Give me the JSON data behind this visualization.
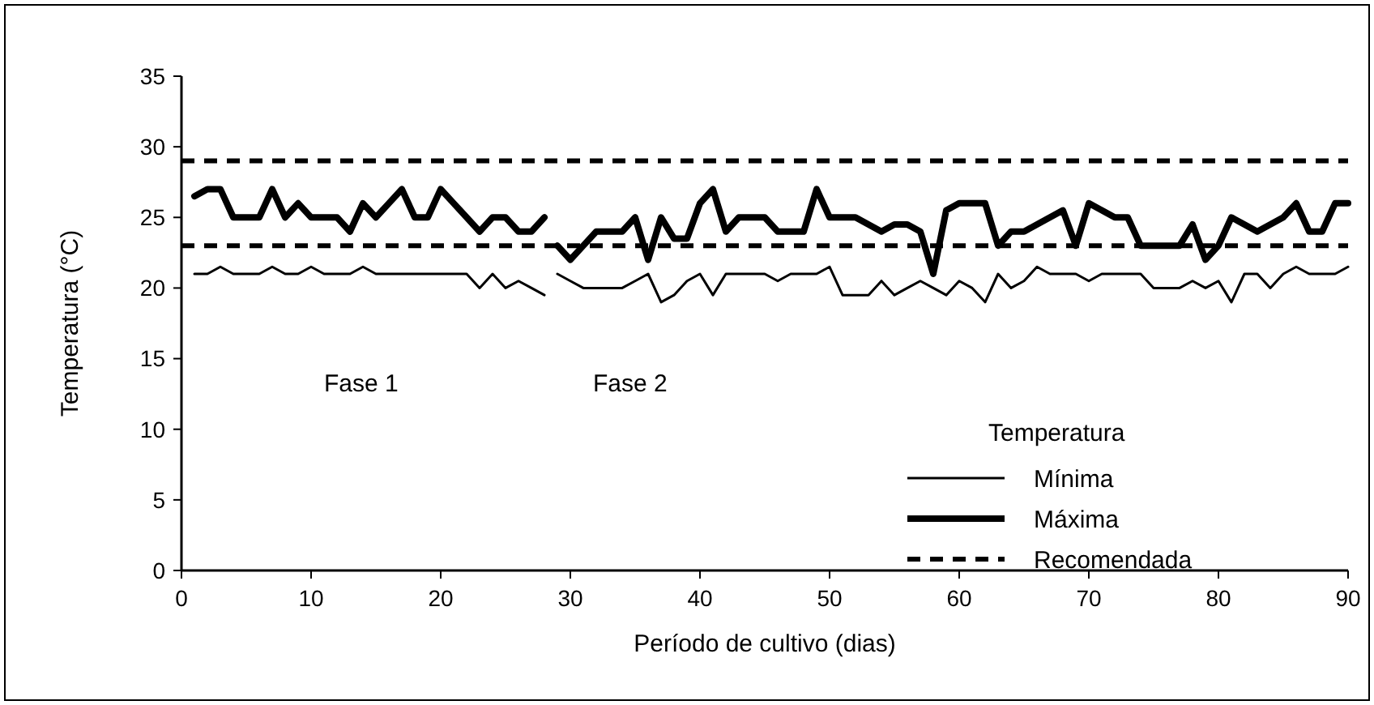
{
  "chart_data": {
    "type": "line",
    "xlabel": "Período de cultivo (dias)",
    "ylabel": "Temperatura (°C)",
    "legend_title": "Temperatura",
    "x": [
      1,
      2,
      3,
      4,
      5,
      6,
      7,
      8,
      9,
      10,
      11,
      12,
      13,
      14,
      15,
      16,
      17,
      18,
      19,
      20,
      21,
      22,
      23,
      24,
      25,
      26,
      27,
      28,
      28.5,
      29,
      30,
      31,
      32,
      33,
      34,
      35,
      36,
      37,
      38,
      39,
      40,
      41,
      42,
      43,
      44,
      45,
      46,
      47,
      48,
      49,
      50,
      51,
      52,
      53,
      54,
      55,
      56,
      57,
      58,
      59,
      60,
      61,
      62,
      63,
      64,
      65,
      66,
      67,
      68,
      69,
      70,
      71,
      72,
      73,
      74,
      75,
      76,
      77,
      78,
      79,
      80,
      81,
      82,
      83,
      84,
      85,
      86,
      87,
      88,
      89,
      90
    ],
    "series": [
      {
        "name": "Mínima",
        "color": "#000000",
        "values": [
          21,
          21,
          21.5,
          21,
          21,
          21,
          21.5,
          21,
          21,
          21.5,
          21,
          21,
          21,
          21.5,
          21,
          21,
          21,
          21,
          21,
          21,
          21,
          21,
          20,
          21,
          20,
          20.5,
          20,
          19.5,
          null,
          21,
          20.5,
          20,
          20,
          20,
          20,
          20.5,
          21,
          19,
          19.5,
          20.5,
          21,
          19.5,
          21,
          21,
          21,
          21,
          20.5,
          21,
          21,
          21,
          21.5,
          19.5,
          19.5,
          19.5,
          20.5,
          19.5,
          20,
          20.5,
          20,
          19.5,
          20.5,
          20,
          19,
          21,
          20,
          20.5,
          21.5,
          21,
          21,
          21,
          20.5,
          21,
          21,
          21,
          21,
          20,
          20,
          20,
          20.5,
          20,
          20.5,
          19,
          21,
          21,
          20,
          21,
          21.5,
          21,
          21,
          21,
          21.5
        ]
      },
      {
        "name": "Máxima",
        "color": "#000000",
        "values": [
          26.5,
          27,
          27,
          25,
          25,
          25,
          27,
          25,
          26,
          25,
          25,
          25,
          24,
          26,
          25,
          26,
          27,
          25,
          25,
          27,
          26,
          25,
          24,
          25,
          25,
          24,
          24,
          25,
          null,
          23,
          22,
          23,
          24,
          24,
          24,
          25,
          22,
          25,
          23.5,
          23.5,
          26,
          27,
          24,
          25,
          25,
          25,
          24,
          24,
          24,
          27,
          25,
          25,
          25,
          24.5,
          24,
          24.5,
          24.5,
          24,
          21,
          25.5,
          26,
          26,
          26,
          23,
          24,
          24,
          24.5,
          25,
          25.5,
          23,
          26,
          25.5,
          25,
          25,
          23,
          23,
          23,
          23,
          24.5,
          22,
          23,
          25,
          24.5,
          24,
          24.5,
          25,
          26,
          24,
          24,
          26,
          26
        ]
      }
    ],
    "ref_lines": [
      {
        "axis": "y",
        "value": 29,
        "label": "Recomendada",
        "color": "#000000",
        "line_style": "dashed"
      },
      {
        "axis": "y",
        "value": 23,
        "color": "#000000",
        "line_style": "dashed"
      }
    ],
    "annotations": [
      "Fase 1",
      "Fase 2"
    ],
    "xlim": [
      0,
      90
    ],
    "xticks": [
      0,
      10,
      20,
      30,
      40,
      50,
      60,
      70,
      80,
      90
    ],
    "ylim": [
      0,
      35
    ],
    "yticks": [
      0,
      5,
      10,
      15,
      20,
      25,
      30,
      35
    ],
    "grid": false,
    "legend": "bottom right"
  }
}
